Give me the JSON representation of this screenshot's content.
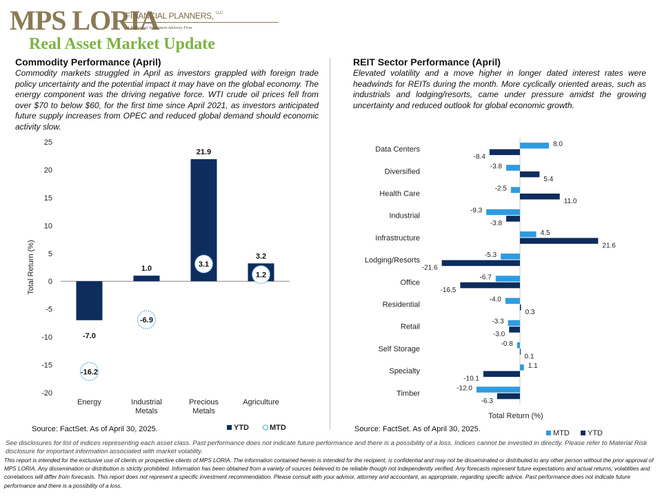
{
  "brand": {
    "logo_main": "MPS LORIA",
    "logo_sub": "FINANCIAL PLANNERS,",
    "logo_llc": "LLC",
    "logo_tagline": "A Registered Investment Advisory Firm",
    "colors": {
      "logo_gold": "#8a7a55",
      "title_green": "#7cb342"
    }
  },
  "page_title": "Real Asset Market Update",
  "left": {
    "title": "Commodity  Performance (April)",
    "text": "Commodity markets struggled in April as investors grappled with foreign trade policy uncertainty and the potential impact it may have on the global economy. The energy component was the driving negative force. WTI crude oil prices fell from over $70 to below $60, for the first time since April 2021, as investors anticipated future supply increases from OPEC and reduced global demand should economic activity slow.",
    "source": "Source: FactSet. As of April 30, 2025."
  },
  "right": {
    "title": "REIT Sector Performance (April)",
    "text": "Elevated volatility and a move higher in longer dated interest rates were headwinds for REITs during the month. More cyclically oriented areas, such as industrials and lodging/resorts, came under pressure amidst the growing uncertainty and reduced outlook for global economic growth.",
    "source": "Source: FactSet. As of April 30, 2025."
  },
  "chart_data": [
    {
      "type": "bar",
      "categories": [
        "Energy",
        "Industrial Metals",
        "Precious Metals",
        "Agriculture"
      ],
      "category_lines": [
        [
          "Energy"
        ],
        [
          "Industrial",
          "Metals"
        ],
        [
          "Precious",
          "Metals"
        ],
        [
          "Agriculture"
        ]
      ],
      "series": [
        {
          "name": "YTD",
          "values": [
            -7.0,
            1.0,
            21.9,
            3.2
          ],
          "labels": [
            "-7.0",
            "1.0",
            "21.9",
            "3.2"
          ],
          "color": "#0d2d5e",
          "mark": "bar"
        },
        {
          "name": "MTD",
          "values": [
            -16.2,
            -6.9,
            3.1,
            1.2
          ],
          "labels": [
            "-16.2",
            "-6.9",
            "3.1",
            "1.2"
          ],
          "color": "#4aa3df",
          "mark": "circle"
        }
      ],
      "ylabel": "Total Return (%)",
      "ylim": [
        -20,
        25
      ],
      "yticks": [
        25,
        20,
        15,
        10,
        5,
        0,
        -5,
        -10,
        -15,
        -20
      ],
      "ytick_labels": [
        "25",
        "20",
        "15",
        "10",
        "5",
        "0",
        "-5",
        "-10",
        "-15",
        "-20"
      ],
      "legend": [
        "YTD",
        "MTD"
      ],
      "legend_position": "bottom-right",
      "grid": false
    },
    {
      "type": "bar",
      "orientation": "horizontal",
      "categories": [
        "Data Centers",
        "Diversified",
        "Health Care",
        "Industrial",
        "Infrastructure",
        "Lodging/Resorts",
        "Office",
        "Residential",
        "Retail",
        "Self Storage",
        "Specialty",
        "Timber"
      ],
      "series": [
        {
          "name": "MTD",
          "values": [
            8.0,
            -3.8,
            -2.5,
            -9.3,
            4.5,
            -5.3,
            -6.7,
            -4.0,
            -3.3,
            -0.8,
            1.1,
            -12.0
          ],
          "labels": [
            "8.0",
            "-3.8",
            "-2.5",
            "-9.3",
            "4.5",
            "-5.3",
            "-6.7",
            "-4.0",
            "-3.3",
            "-0.8",
            "1.1",
            "-12.0"
          ],
          "color": "#2f9be0"
        },
        {
          "name": "YTD",
          "values": [
            -8.4,
            5.4,
            11.0,
            -3.8,
            21.6,
            -21.6,
            -16.5,
            0.3,
            -3.0,
            0.1,
            -10.1,
            -6.3
          ],
          "labels": [
            "-8.4",
            "5.4",
            "11.0",
            "-3.8",
            "21.6",
            "-21.6",
            "-16.5",
            "0.3",
            "-3.0",
            "0.1",
            "-10.1",
            "-6.3"
          ],
          "color": "#0d2d5e"
        }
      ],
      "xlabel": "Total Return (%)",
      "xlim": [
        -25,
        25
      ],
      "legend": [
        "MTD",
        "YTD"
      ],
      "legend_position": "bottom-right",
      "grid": false
    }
  ],
  "disclosures": {
    "short": "See disclosures for list of indices representing each asset class. Past performance does not indicate future performance and there is a possibility of a loss. Indices cannot be invested in directly. Please refer to Material Risk disclosure for important information associated with market volatility.",
    "long": "This report is intended for the exclusive use of clients or prospective clients of MPS LORIA. The information contained herein is intended for the recipient, is confidential and may not be disseminated or distributed to any other person without the prior approval of MPS LORIA. Any dissemination or distribution is strictly prohibited. Information has been obtained from a variety of sources believed to be reliable though not independently verified. Any forecasts represent future expectations and actual returns; volatilities and correlations will differ from forecasts. This report does not represent a specific investment recommendation. Please consult with your advisor, attorney and accountant, as appropriate, regarding specific advice. Past performance does not indicate future performance and there is a possibility of a loss."
  }
}
